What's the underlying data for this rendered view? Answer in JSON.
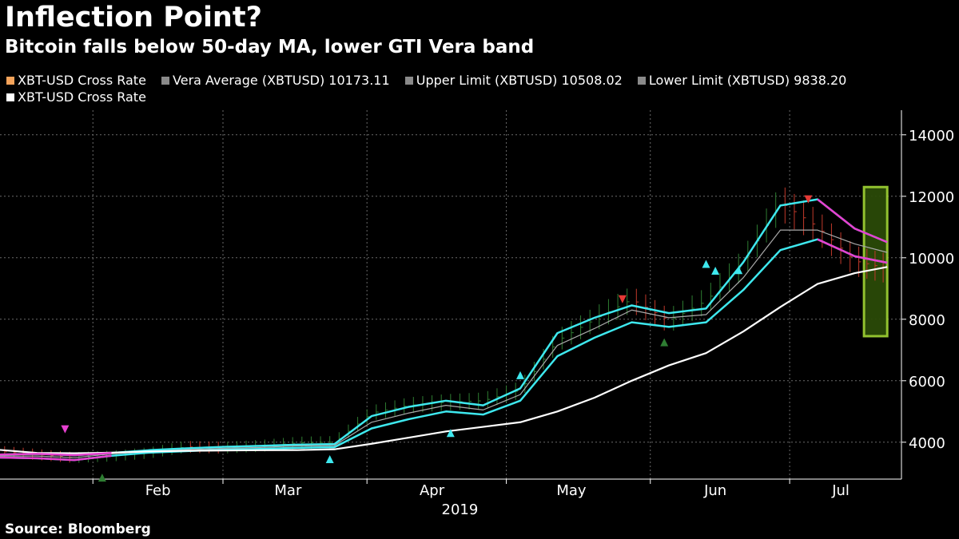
{
  "header": {
    "title": "Inflection Point?",
    "subtitle": "Bitcoin falls below 50-day MA, lower GTI Vera band"
  },
  "legend": {
    "items": [
      {
        "label": "XBT-USD Cross Rate",
        "color": "#f4a35a"
      },
      {
        "label": "Vera Average (XBTUSD) 10173.11",
        "color": "#8a8a8a"
      },
      {
        "label": "Upper Limit (XBTUSD) 10508.02",
        "color": "#8a8a8a"
      },
      {
        "label": "Lower Limit (XBTUSD) 9838.20",
        "color": "#8a8a8a"
      },
      {
        "label": "XBT-USD Cross Rate",
        "color": "#ffffff"
      }
    ]
  },
  "footer": {
    "source": "Source: Bloomberg"
  },
  "colors": {
    "background": "#000000",
    "grid": "#6a6a6a",
    "band": "#3ee8ee",
    "band_bearish": "#e640d0",
    "average": "#a8a8a8",
    "moving_average": "#ffffff",
    "bar_up": "#2e7d32",
    "bar_down": "#c0392b",
    "highlight_fill": "#2b4a08",
    "highlight_border": "#9acd32"
  },
  "chart_data": {
    "type": "line",
    "year_label": "2019",
    "x_tick_labels": [
      "Feb",
      "Mar",
      "Apr",
      "May",
      "Jun",
      "Jul"
    ],
    "x_range": [
      "2019-01-12",
      "2019-07-23"
    ],
    "ylim": [
      2800,
      14800
    ],
    "y_ticks": [
      4000,
      6000,
      8000,
      10000,
      12000,
      14000
    ],
    "y_tick_labels": [
      "4000",
      "6000",
      "8000",
      "10000",
      "12000",
      "14000"
    ],
    "grid": true,
    "x": [
      "2019-01-12",
      "2019-01-20",
      "2019-01-28",
      "2019-02-05",
      "2019-02-13",
      "2019-02-21",
      "2019-03-01",
      "2019-03-09",
      "2019-03-17",
      "2019-03-25",
      "2019-04-02",
      "2019-04-10",
      "2019-04-18",
      "2019-04-26",
      "2019-05-04",
      "2019-05-12",
      "2019-05-20",
      "2019-05-28",
      "2019-06-05",
      "2019-06-13",
      "2019-06-21",
      "2019-06-29",
      "2019-07-07",
      "2019-07-15",
      "2019-07-22"
    ],
    "series": [
      {
        "name": "XBT-USD Cross Rate",
        "values": [
          3700,
          3600,
          3500,
          3550,
          3650,
          3850,
          3820,
          3880,
          3980,
          4000,
          4950,
          5200,
          5300,
          5350,
          5700,
          7300,
          8000,
          8650,
          7950,
          8600,
          9800,
          11800,
          11000,
          9900,
          9650
        ]
      },
      {
        "name": "Vera Average (XBTUSD)",
        "values": [
          3550,
          3550,
          3500,
          3620,
          3700,
          3760,
          3800,
          3830,
          3880,
          3890,
          4650,
          4950,
          5200,
          5050,
          5550,
          7150,
          7700,
          8300,
          8050,
          8150,
          9350,
          10900,
          10900,
          10450,
          10173
        ]
      },
      {
        "name": "Upper Limit (XBTUSD)",
        "values": [
          3600,
          3620,
          3580,
          3650,
          3740,
          3800,
          3850,
          3880,
          3920,
          3940,
          4850,
          5150,
          5350,
          5200,
          5750,
          7550,
          8050,
          8450,
          8200,
          8350,
          9850,
          11700,
          11900,
          10950,
          10508
        ]
      },
      {
        "name": "Lower Limit (XBTUSD)",
        "values": [
          3500,
          3480,
          3420,
          3560,
          3660,
          3710,
          3760,
          3780,
          3820,
          3840,
          4450,
          4750,
          5000,
          4900,
          5350,
          6800,
          7400,
          7900,
          7750,
          7900,
          8950,
          10250,
          10600,
          10050,
          9838
        ]
      },
      {
        "name": "XBT-USD Cross Rate",
        "values": [
          3750,
          3650,
          3640,
          3660,
          3700,
          3720,
          3730,
          3740,
          3745,
          3770,
          3950,
          4150,
          4350,
          4500,
          4650,
          5000,
          5450,
          6000,
          6500,
          6900,
          7600,
          8400,
          9150,
          9500,
          9700
        ]
      }
    ]
  }
}
